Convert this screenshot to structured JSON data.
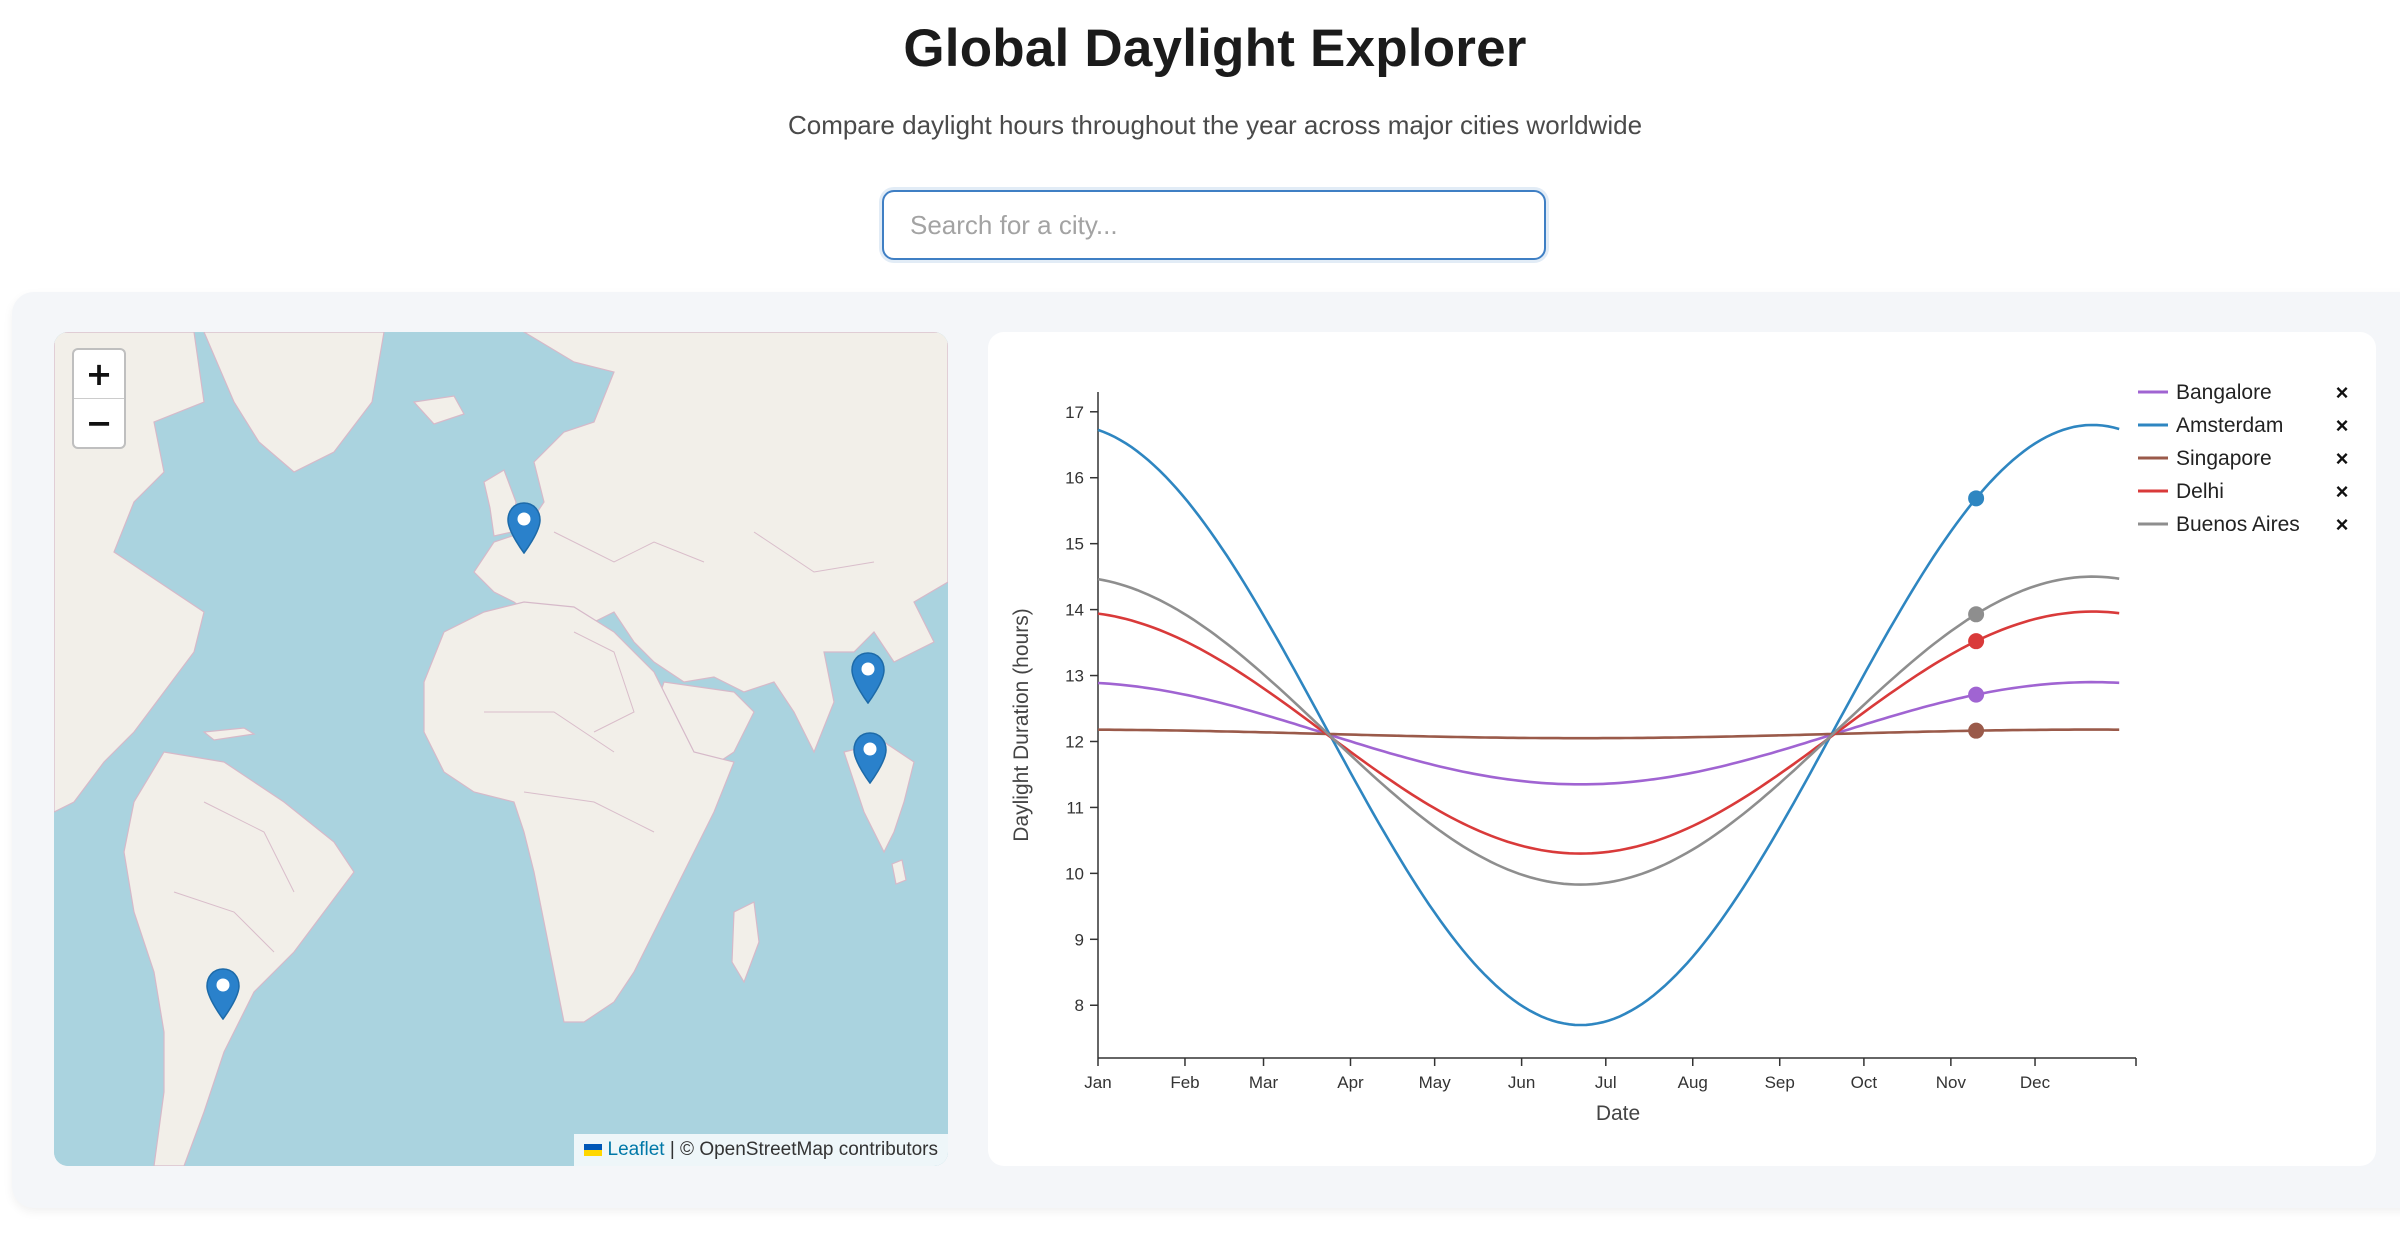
{
  "header": {
    "title": "Global Daylight Explorer",
    "subtitle": "Compare daylight hours throughout the year across major cities worldwide"
  },
  "search": {
    "placeholder": "Search for a city...",
    "value": ""
  },
  "map": {
    "zoom_in": "+",
    "zoom_out": "−",
    "attribution_link": "Leaflet",
    "attribution_text": "| © OpenStreetMap contributors",
    "markers": [
      {
        "city": "Amsterdam",
        "lat": 52.37,
        "lon": 4.9
      },
      {
        "city": "Delhi",
        "lat": 28.61,
        "lon": 77.21
      },
      {
        "city": "Bangalore",
        "lat": 12.97,
        "lon": 77.59
      },
      {
        "city": "Buenos Aires",
        "lat": -34.6,
        "lon": -58.38
      }
    ]
  },
  "chart_data": {
    "type": "line",
    "xlabel": "Date",
    "ylabel": "Daylight Duration (hours)",
    "x_ticks": [
      "Jan",
      "Feb",
      "Mar",
      "Apr",
      "May",
      "Jun",
      "Jul",
      "Aug",
      "Sep",
      "Oct",
      "Nov",
      "Dec"
    ],
    "y_ticks": [
      8,
      9,
      10,
      11,
      12,
      13,
      14,
      15,
      16,
      17
    ],
    "ylim": [
      7.2,
      17.3
    ],
    "x_range_days": [
      0,
      365
    ],
    "grid": false,
    "legend_position": "top-right",
    "current_marker_day": 313,
    "series": [
      {
        "name": "Bangalore",
        "color": "#a064d2",
        "min": 11.35,
        "max": 12.9,
        "remove": "×"
      },
      {
        "name": "Amsterdam",
        "color": "#2e86c1",
        "min": 7.7,
        "max": 16.8,
        "remove": "×"
      },
      {
        "name": "Singapore",
        "color": "#9a5a4a",
        "min": 12.05,
        "max": 12.18,
        "remove": "×"
      },
      {
        "name": "Delhi",
        "color": "#d93a3a",
        "min": 10.3,
        "max": 13.97,
        "remove": "×"
      },
      {
        "name": "Buenos Aires",
        "color": "#8e8e8e",
        "min": 9.83,
        "max": 14.5,
        "remove": "×"
      }
    ]
  }
}
